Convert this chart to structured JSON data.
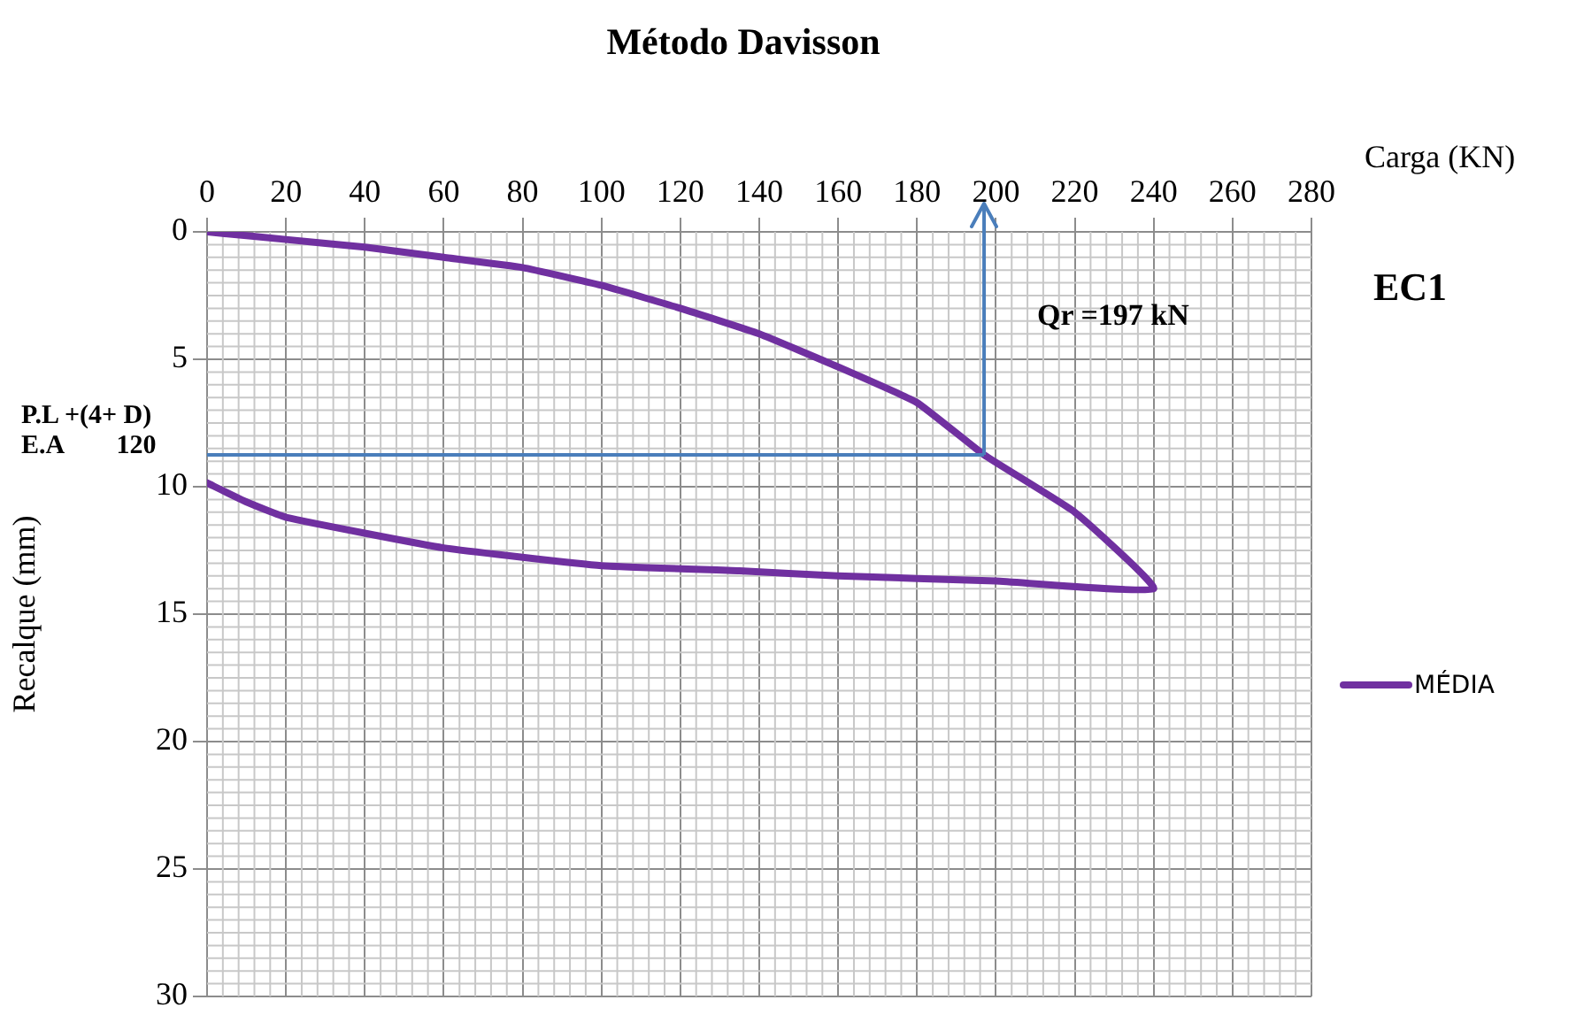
{
  "chart_data": {
    "type": "line",
    "title": "Método Davisson",
    "xlabel": "Carga (KN)",
    "ylabel": "Recalque (mm)",
    "xlim": [
      0,
      280
    ],
    "xticks": [
      0,
      20,
      40,
      60,
      80,
      100,
      120,
      140,
      160,
      180,
      200,
      220,
      240,
      260,
      280
    ],
    "ylim": [
      30,
      0
    ],
    "yticks": [
      0,
      5,
      10,
      15,
      20,
      25,
      30
    ],
    "grid": true,
    "legend": "right",
    "marker": "none",
    "line_style": "solid",
    "series": [
      {
        "name": "MÉDIA",
        "color": "#7030a0",
        "x": [
          0,
          20,
          40,
          60,
          80,
          100,
          120,
          140,
          160,
          180,
          197,
          220,
          240,
          200,
          160,
          135,
          100,
          60,
          20,
          10,
          0
        ],
        "values": [
          0,
          0.3,
          0.6,
          1.0,
          1.4,
          2.1,
          3.0,
          4.0,
          5.3,
          6.7,
          8.75,
          11.0,
          14.0,
          13.7,
          13.5,
          13.3,
          13.1,
          12.4,
          11.2,
          10.6,
          9.85
        ]
      }
    ],
    "ref_lines": [
      {
        "axis": "y",
        "value": 8.75,
        "label": "P.L +(4+ D)\nE.A        120",
        "color": "#4a7ebb"
      },
      {
        "axis": "x",
        "value": 197,
        "label": "Qr =197 kN",
        "color": "#4a7ebb"
      }
    ],
    "annotations": [
      "EC1"
    ]
  }
}
